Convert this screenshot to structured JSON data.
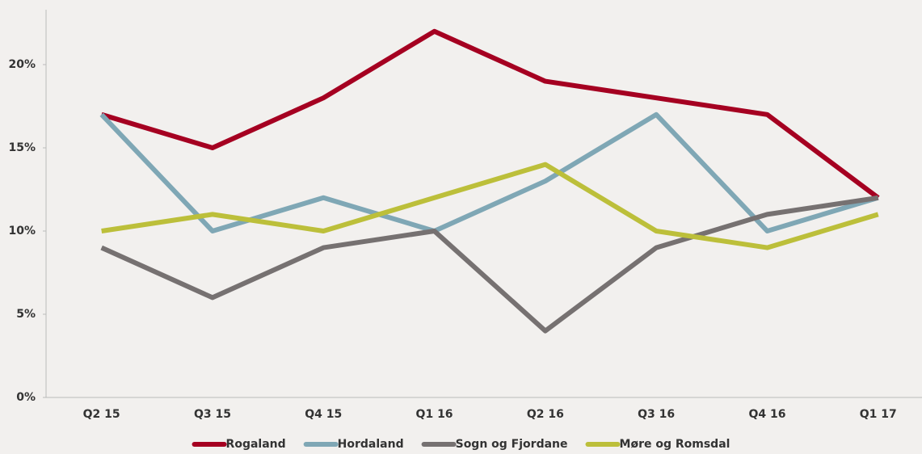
{
  "chart_data": {
    "type": "line",
    "categories": [
      "Q2 15",
      "Q3 15",
      "Q4 15",
      "Q1 16",
      "Q2 16",
      "Q3 16",
      "Q4 16",
      "Q1 17"
    ],
    "series": [
      {
        "name": "Rogaland",
        "color": "#a50021",
        "values": [
          17,
          15,
          18,
          22,
          19,
          18,
          17,
          12
        ]
      },
      {
        "name": "Hordaland",
        "color": "#7fa7b5",
        "values": [
          17,
          10,
          12,
          10,
          13,
          17,
          10,
          12
        ]
      },
      {
        "name": "Sogn og Fjordane",
        "color": "#767171",
        "values": [
          9,
          6,
          9,
          10,
          4,
          9,
          11,
          12
        ]
      },
      {
        "name": "Møre og Romsdal",
        "color": "#bcbf3a",
        "values": [
          10,
          11,
          10,
          12,
          14,
          10,
          9,
          11
        ]
      }
    ],
    "ylim": [
      0,
      23.3
    ],
    "yticks": [
      {
        "value": 0,
        "label": "0%"
      },
      {
        "value": 5,
        "label": "5%"
      },
      {
        "value": 10,
        "label": "10%"
      },
      {
        "value": 15,
        "label": "15%"
      },
      {
        "value": 20,
        "label": "20%"
      }
    ],
    "grid": false,
    "legend": "bottom"
  }
}
